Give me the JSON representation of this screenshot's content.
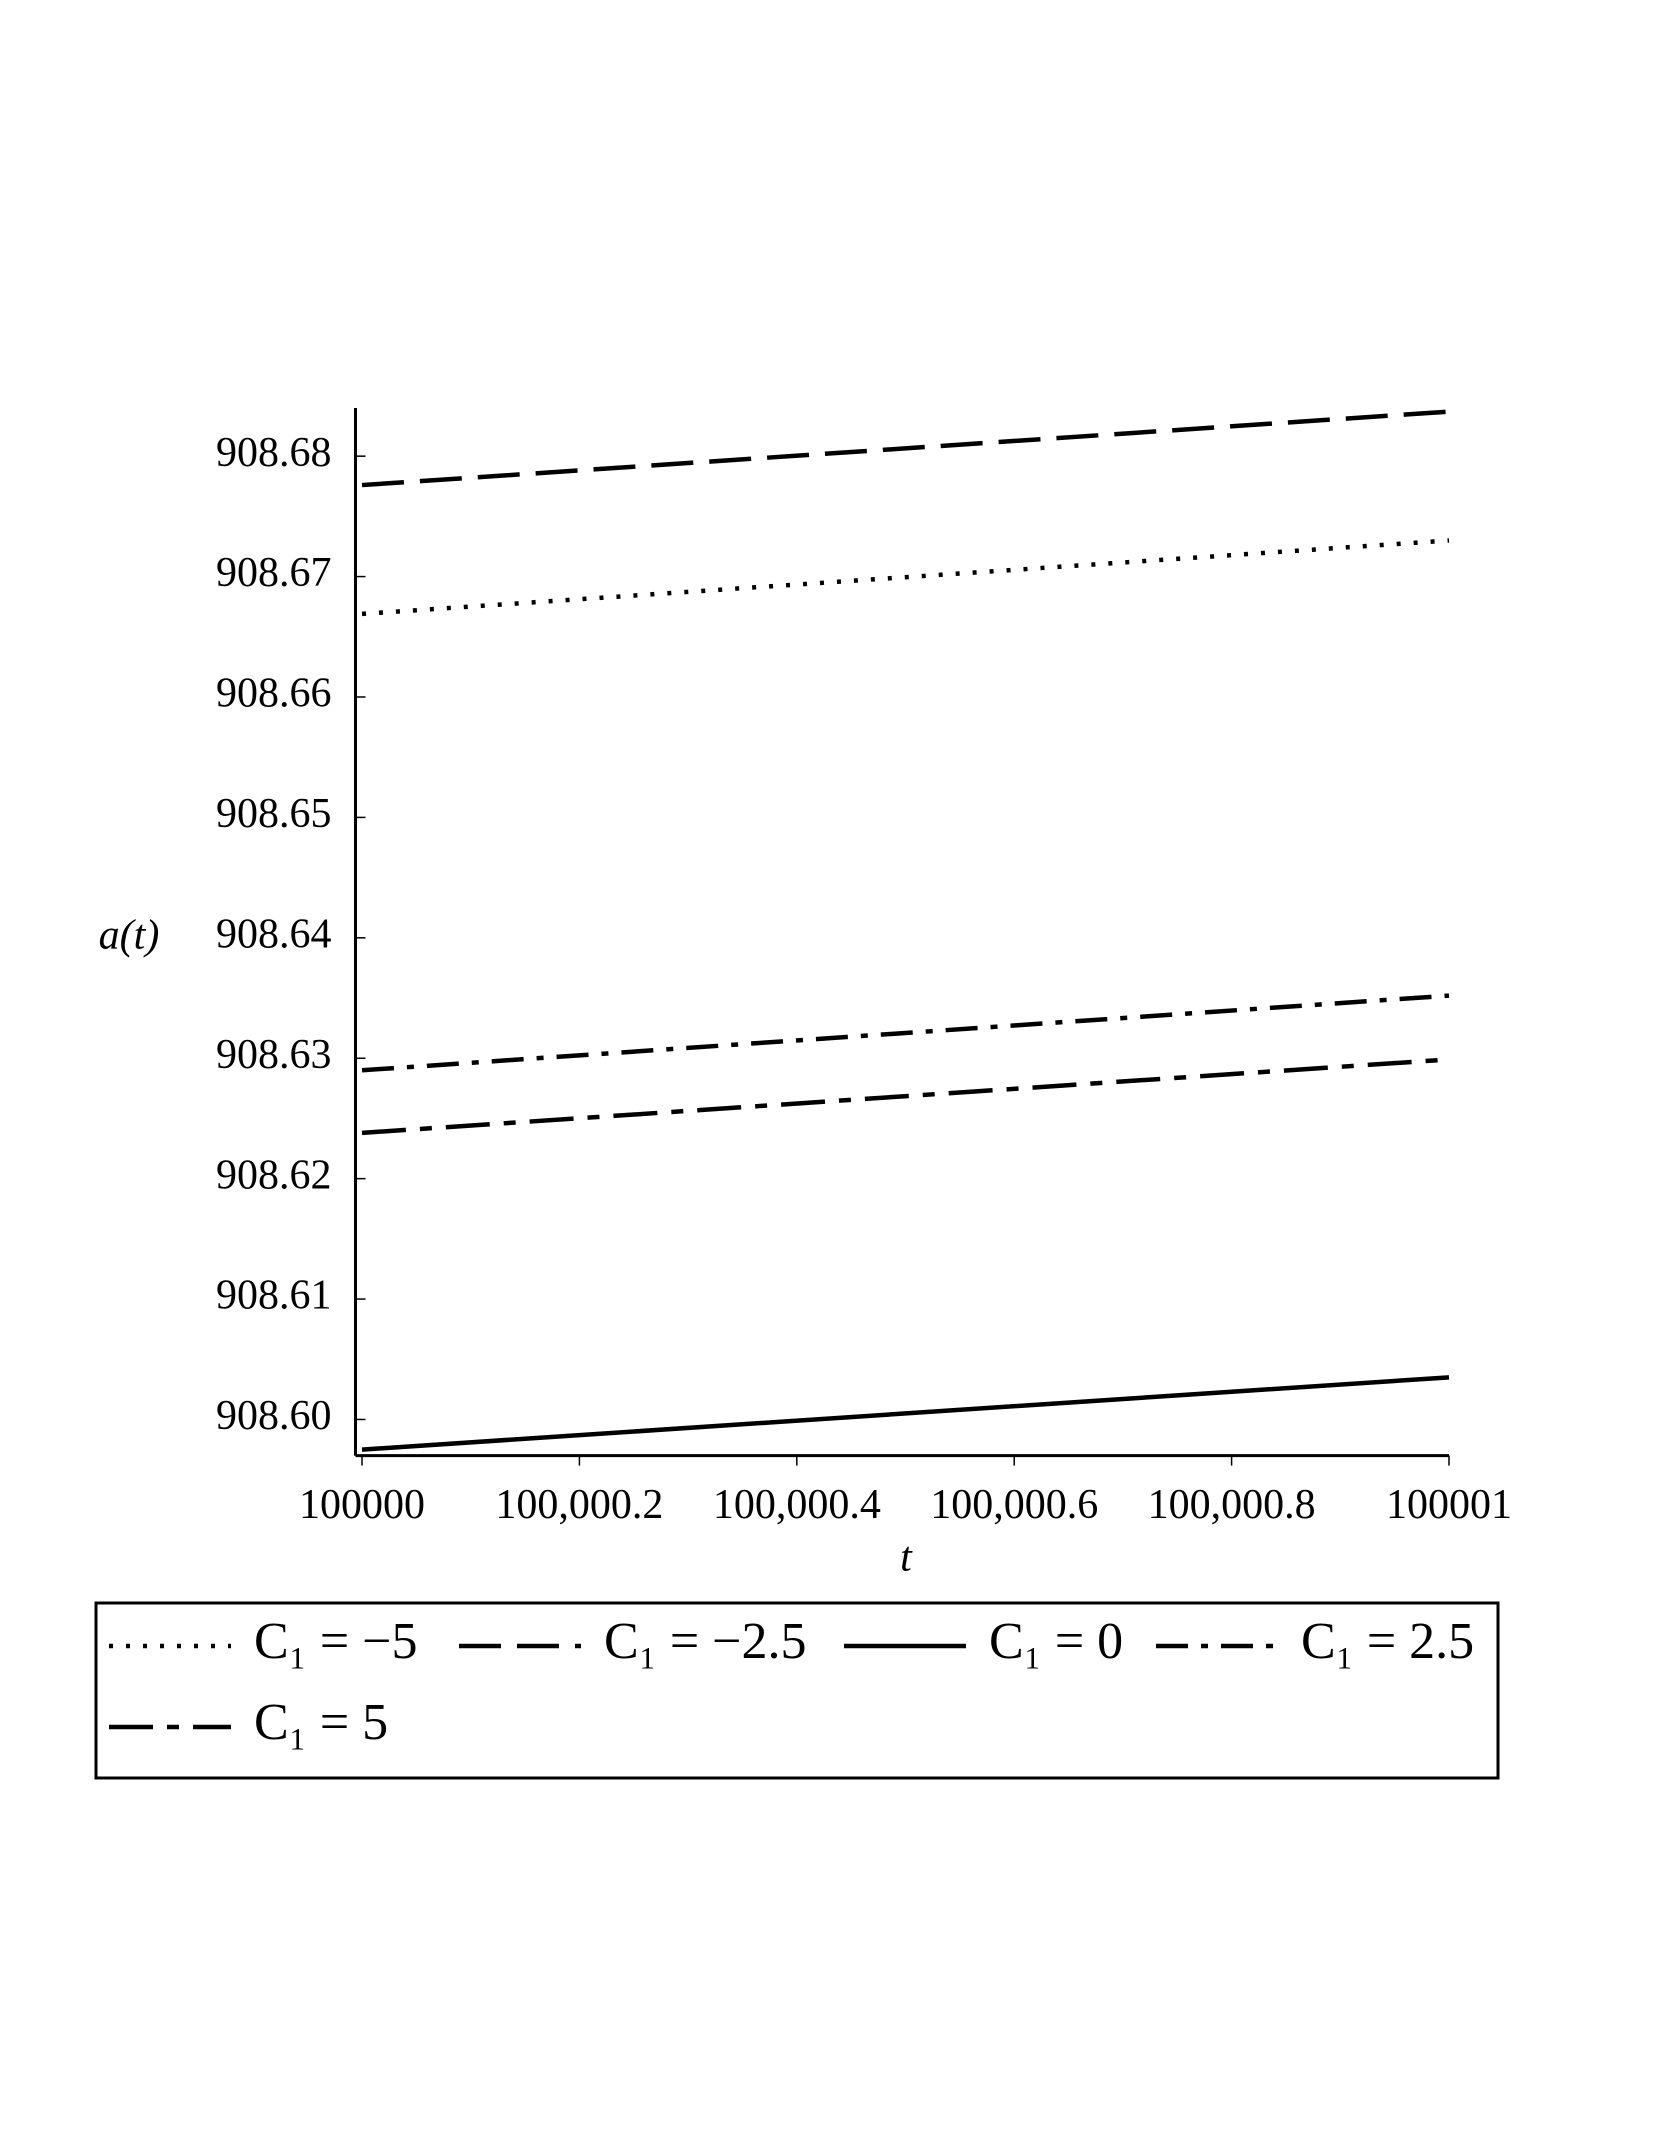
{
  "chart_data": {
    "type": "line",
    "x_label": "t",
    "y_label": "a(t)",
    "x": [
      100000,
      100001
    ],
    "series": [
      {
        "name": "C₁ = −5",
        "color": "#000000",
        "dash": "dotted",
        "values": [
          908.6669,
          908.673
        ]
      },
      {
        "name": "C₁ = −2.5",
        "color": "#000000",
        "dash": "long-dash",
        "values": [
          908.6776,
          908.6837
        ]
      },
      {
        "name": "C₁ = 0",
        "color": "#000000",
        "dash": "solid",
        "values": [
          908.5975,
          908.6035
        ]
      },
      {
        "name": "C₁ = 2.5",
        "color": "#000000",
        "dash": "dash-dot",
        "values": [
          908.629,
          908.6352
        ]
      },
      {
        "name": "C₁ = 5",
        "color": "#000000",
        "dash": "long-short-dash",
        "values": [
          908.6238,
          908.6299
        ]
      }
    ],
    "xlim": [
      99999.994,
      100001
    ],
    "ylim": [
      908.597,
      908.684
    ],
    "xticks": [
      100000,
      {
        "value": 100000.2,
        "label": "100,000.2"
      },
      {
        "value": 100000.4,
        "label": "100,000.4"
      },
      {
        "value": 100000.6,
        "label": "100,000.6"
      },
      {
        "value": 100000.8,
        "label": "100,000.8"
      },
      100001
    ],
    "yticks": [
      {
        "value": 908.6,
        "label": "908.60"
      },
      908.61,
      908.62,
      908.63,
      908.64,
      908.65,
      908.66,
      908.67,
      908.68
    ],
    "grid": false,
    "legend": "bottom"
  }
}
